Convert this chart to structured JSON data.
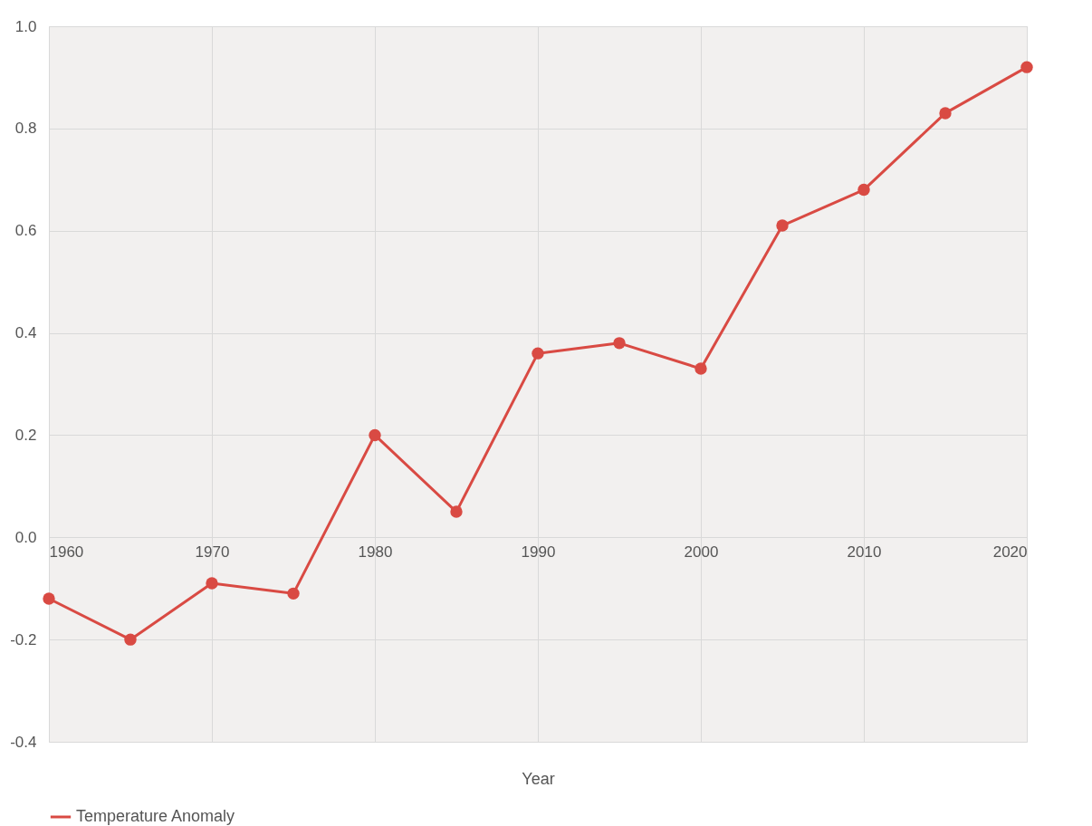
{
  "chart_data": {
    "type": "line",
    "xlabel": "Year",
    "x": [
      1960,
      1965,
      1970,
      1975,
      1980,
      1985,
      1990,
      1995,
      2000,
      2005,
      2010,
      2015,
      2020
    ],
    "series": [
      {
        "name": "Temperature Anomaly",
        "color": "#d94a43",
        "values": [
          -0.12,
          -0.2,
          -0.09,
          -0.11,
          0.2,
          0.05,
          0.36,
          0.38,
          0.33,
          0.61,
          0.68,
          0.83,
          0.92
        ]
      }
    ],
    "xlim": [
      1960,
      2020
    ],
    "xticks": [
      1960,
      1970,
      1980,
      1990,
      2000,
      2010,
      2020
    ],
    "ylim": [
      -0.4,
      1.0
    ],
    "yticks": [
      -0.4,
      -0.2,
      {
        "value": 0,
        "label": "0.0"
      },
      0.2,
      0.4,
      0.6,
      0.8,
      {
        "value": 1,
        "label": "1.0"
      }
    ],
    "grid": true,
    "legend": "bottom",
    "marker": "circle",
    "line_style": "solid"
  }
}
